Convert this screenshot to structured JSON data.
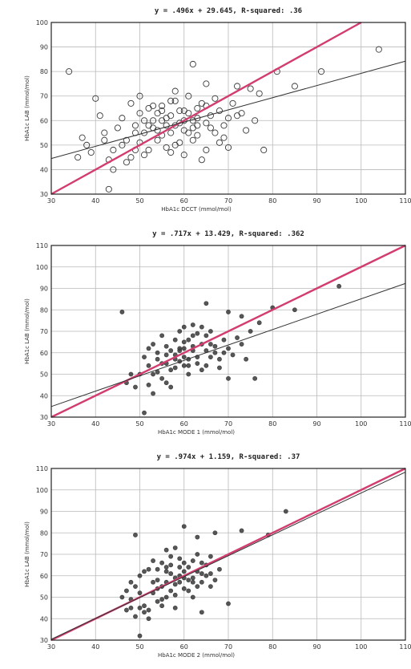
{
  "chart_data": [
    {
      "type": "scatter",
      "title": "y = .496x + 29.645, R-squared: .36",
      "xlabel": "HbA1c DCCT (mmol/mol)",
      "ylabel": "HbA1c LAB (mmol/mol)",
      "xlim": [
        30,
        110
      ],
      "ylim": [
        30,
        100
      ],
      "xticks": [
        30,
        40,
        50,
        60,
        70,
        80,
        90,
        100,
        110
      ],
      "yticks": [
        30,
        40,
        50,
        60,
        70,
        80,
        90,
        100
      ],
      "grid": true,
      "marker": "circle",
      "regression": {
        "slope": 0.496,
        "intercept": 29.645
      },
      "identity_line": true,
      "line_colors": {
        "identity": "#d23c6e",
        "regression": "#333333"
      },
      "points": [
        [
          34,
          80
        ],
        [
          40,
          69
        ],
        [
          43,
          32
        ],
        [
          62,
          83
        ],
        [
          72,
          74
        ],
        [
          81,
          80
        ],
        [
          91,
          80
        ],
        [
          104,
          89
        ],
        [
          85,
          74
        ],
        [
          78,
          48
        ],
        [
          70,
          49
        ],
        [
          75,
          73
        ],
        [
          77,
          71
        ],
        [
          65,
          75
        ],
        [
          36,
          45
        ],
        [
          38,
          50
        ],
        [
          42,
          55
        ],
        [
          44,
          48
        ],
        [
          46,
          61
        ],
        [
          47,
          52
        ],
        [
          48,
          45
        ],
        [
          49,
          58
        ],
        [
          50,
          63
        ],
        [
          51,
          55
        ],
        [
          52,
          48
        ],
        [
          53,
          60
        ],
        [
          54,
          52
        ],
        [
          55,
          66
        ],
        [
          56,
          58
        ],
        [
          57,
          62
        ],
        [
          58,
          50
        ],
        [
          59,
          64
        ],
        [
          60,
          56
        ],
        [
          61,
          70
        ],
        [
          62,
          60
        ],
        [
          63,
          54
        ],
        [
          64,
          67
        ],
        [
          65,
          59
        ],
        [
          66,
          62
        ],
        [
          67,
          55
        ],
        [
          68,
          64
        ],
        [
          69,
          58
        ],
        [
          70,
          61
        ],
        [
          71,
          67
        ],
        [
          73,
          63
        ],
        [
          74,
          56
        ],
        [
          76,
          60
        ],
        [
          41,
          62
        ],
        [
          43,
          44
        ],
        [
          45,
          57
        ],
        [
          50,
          51
        ],
        [
          52,
          65
        ],
        [
          54,
          56
        ],
        [
          56,
          49
        ],
        [
          58,
          68
        ],
        [
          60,
          46
        ],
        [
          62,
          52
        ],
        [
          64,
          44
        ],
        [
          66,
          57
        ],
        [
          68,
          51
        ],
        [
          72,
          62
        ],
        [
          44,
          40
        ],
        [
          47,
          43
        ],
        [
          49,
          55
        ],
        [
          51,
          60
        ],
        [
          53,
          66
        ],
        [
          55,
          54
        ],
        [
          57,
          47
        ],
        [
          59,
          59
        ],
        [
          61,
          63
        ],
        [
          63,
          65
        ],
        [
          65,
          48
        ],
        [
          67,
          69
        ],
        [
          69,
          53
        ],
        [
          48,
          67
        ],
        [
          50,
          70
        ],
        [
          52,
          58
        ],
        [
          55,
          60
        ],
        [
          57,
          55
        ],
        [
          59,
          51
        ],
        [
          60,
          64
        ],
        [
          62,
          57
        ],
        [
          63,
          61
        ],
        [
          65,
          66
        ],
        [
          58,
          72
        ],
        [
          46,
          50
        ],
        [
          39,
          47
        ],
        [
          37,
          53
        ],
        [
          42,
          52
        ],
        [
          55,
          64
        ],
        [
          53,
          57
        ],
        [
          56,
          61
        ],
        [
          54,
          63
        ],
        [
          58,
          58
        ],
        [
          60,
          60
        ],
        [
          57,
          68
        ],
        [
          61,
          55
        ],
        [
          63,
          58
        ],
        [
          49,
          48
        ],
        [
          51,
          46
        ]
      ]
    },
    {
      "type": "scatter",
      "title": "y = .717x + 13.429, R-squared: .362",
      "xlabel": "HbA1c MODE 1 (mmol/mol)",
      "ylabel": "HbA1c LAB (mmol/mol)",
      "xlim": [
        30,
        110
      ],
      "ylim": [
        30,
        110
      ],
      "xticks": [
        30,
        40,
        50,
        60,
        70,
        80,
        90,
        100,
        110
      ],
      "yticks": [
        30,
        40,
        50,
        60,
        70,
        80,
        90,
        100,
        110
      ],
      "grid": true,
      "marker": "filled-circle",
      "regression": {
        "slope": 0.717,
        "intercept": 13.429
      },
      "identity_line": true,
      "line_colors": {
        "identity": "#d23c6e",
        "regression": "#333333"
      },
      "points": [
        [
          46,
          79
        ],
        [
          65,
          83
        ],
        [
          70,
          79
        ],
        [
          73,
          77
        ],
        [
          77,
          74
        ],
        [
          85,
          80
        ],
        [
          95,
          91
        ],
        [
          80,
          81
        ],
        [
          76,
          48
        ],
        [
          70,
          48
        ],
        [
          51,
          32
        ],
        [
          53,
          41
        ],
        [
          49,
          44
        ],
        [
          52,
          54
        ],
        [
          54,
          60
        ],
        [
          55,
          48
        ],
        [
          56,
          63
        ],
        [
          57,
          52
        ],
        [
          58,
          66
        ],
        [
          59,
          56
        ],
        [
          60,
          62
        ],
        [
          61,
          50
        ],
        [
          62,
          68
        ],
        [
          63,
          58
        ],
        [
          64,
          64
        ],
        [
          65,
          54
        ],
        [
          66,
          70
        ],
        [
          67,
          60
        ],
        [
          68,
          57
        ],
        [
          69,
          66
        ],
        [
          70,
          62
        ],
        [
          71,
          59
        ],
        [
          72,
          67
        ],
        [
          50,
          50
        ],
        [
          52,
          45
        ],
        [
          54,
          57
        ],
        [
          56,
          46
        ],
        [
          58,
          59
        ],
        [
          60,
          54
        ],
        [
          62,
          61
        ],
        [
          64,
          52
        ],
        [
          66,
          64
        ],
        [
          68,
          53
        ],
        [
          53,
          64
        ],
        [
          55,
          68
        ],
        [
          57,
          61
        ],
        [
          59,
          70
        ],
        [
          61,
          66
        ],
        [
          63,
          55
        ],
        [
          65,
          68
        ],
        [
          67,
          63
        ],
        [
          51,
          58
        ],
        [
          53,
          50
        ],
        [
          55,
          55
        ],
        [
          57,
          44
        ],
        [
          59,
          62
        ],
        [
          61,
          57
        ],
        [
          63,
          69
        ],
        [
          65,
          61
        ],
        [
          60,
          72
        ],
        [
          62,
          73
        ],
        [
          56,
          55
        ],
        [
          58,
          53
        ],
        [
          60,
          58
        ],
        [
          52,
          62
        ],
        [
          54,
          51
        ],
        [
          48,
          50
        ],
        [
          47,
          46
        ],
        [
          66,
          58
        ],
        [
          69,
          60
        ],
        [
          73,
          64
        ],
        [
          74,
          57
        ],
        [
          75,
          70
        ],
        [
          64,
          72
        ],
        [
          58,
          57
        ],
        [
          60,
          65
        ],
        [
          62,
          63
        ],
        [
          56,
          59
        ],
        [
          59,
          61
        ],
        [
          61,
          54
        ]
      ]
    },
    {
      "type": "scatter",
      "title": "y = .974x + 1.159, R-squared: .37",
      "xlabel": "HbA1c MODE 2 (mmol/mol)",
      "ylabel": "HbA1c LAB (mmol/mol)",
      "xlim": [
        30,
        110
      ],
      "ylim": [
        30,
        110
      ],
      "xticks": [
        30,
        40,
        50,
        60,
        70,
        80,
        90,
        100,
        110
      ],
      "yticks": [
        30,
        40,
        50,
        60,
        70,
        80,
        90,
        100,
        110
      ],
      "grid": true,
      "marker": "filled-circle",
      "regression": {
        "slope": 0.974,
        "intercept": 1.159
      },
      "identity_line": true,
      "line_colors": {
        "identity": "#d23c6e",
        "regression": "#333333"
      },
      "points": [
        [
          49,
          79
        ],
        [
          60,
          83
        ],
        [
          63,
          78
        ],
        [
          67,
          80
        ],
        [
          73,
          81
        ],
        [
          79,
          79
        ],
        [
          83,
          90
        ],
        [
          70,
          47
        ],
        [
          64,
          43
        ],
        [
          50,
          32
        ],
        [
          47,
          44
        ],
        [
          48,
          49
        ],
        [
          49,
          55
        ],
        [
          50,
          60
        ],
        [
          51,
          46
        ],
        [
          52,
          63
        ],
        [
          53,
          52
        ],
        [
          54,
          58
        ],
        [
          55,
          66
        ],
        [
          56,
          50
        ],
        [
          57,
          61
        ],
        [
          58,
          56
        ],
        [
          59,
          68
        ],
        [
          60,
          54
        ],
        [
          61,
          64
        ],
        [
          62,
          59
        ],
        [
          63,
          70
        ],
        [
          64,
          57
        ],
        [
          65,
          65
        ],
        [
          66,
          61
        ],
        [
          67,
          58
        ],
        [
          68,
          63
        ],
        [
          46,
          50
        ],
        [
          48,
          57
        ],
        [
          50,
          52
        ],
        [
          52,
          44
        ],
        [
          54,
          48
        ],
        [
          56,
          62
        ],
        [
          58,
          45
        ],
        [
          60,
          59
        ],
        [
          62,
          50
        ],
        [
          64,
          66
        ],
        [
          66,
          55
        ],
        [
          51,
          62
        ],
        [
          53,
          67
        ],
        [
          55,
          55
        ],
        [
          57,
          69
        ],
        [
          59,
          60
        ],
        [
          61,
          53
        ],
        [
          63,
          62
        ],
        [
          65,
          60
        ],
        [
          49,
          41
        ],
        [
          51,
          43
        ],
        [
          53,
          57
        ],
        [
          55,
          46
        ],
        [
          57,
          53
        ],
        [
          59,
          64
        ],
        [
          61,
          58
        ],
        [
          63,
          55
        ],
        [
          56,
          72
        ],
        [
          58,
          73
        ],
        [
          54,
          54
        ],
        [
          56,
          57
        ],
        [
          58,
          51
        ],
        [
          60,
          66
        ],
        [
          62,
          57
        ],
        [
          50,
          45
        ],
        [
          52,
          40
        ],
        [
          54,
          63
        ],
        [
          56,
          64
        ],
        [
          58,
          59
        ],
        [
          60,
          62
        ],
        [
          62,
          67
        ],
        [
          64,
          61
        ],
        [
          66,
          69
        ],
        [
          48,
          45
        ],
        [
          47,
          53
        ],
        [
          55,
          49
        ],
        [
          57,
          65
        ],
        [
          59,
          57
        ]
      ]
    }
  ]
}
